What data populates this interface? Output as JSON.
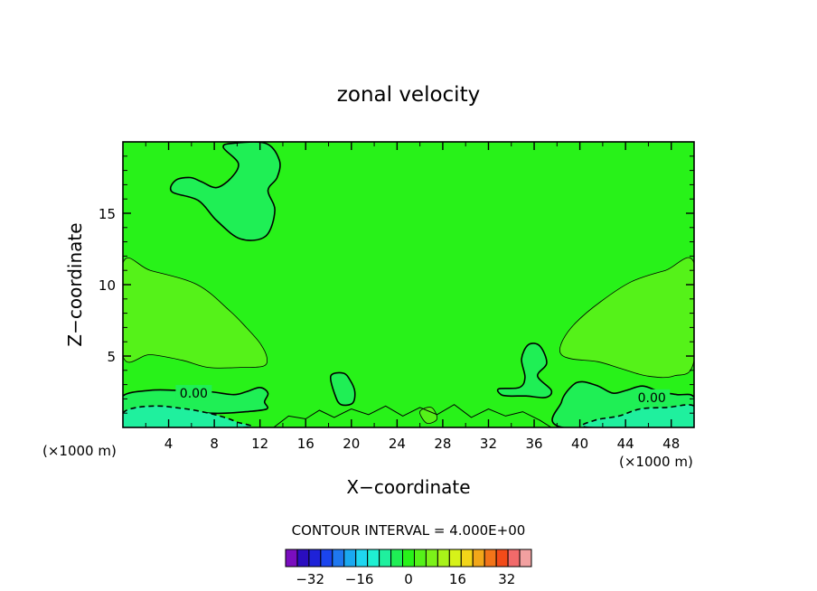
{
  "chart_data": {
    "type": "heatmap",
    "title": "zonal velocity",
    "xlabel": "X−coordinate",
    "ylabel": "Z−coordinate",
    "x_unit_label": "(×1000 m)",
    "x_unit_label_right": "(×1000 m)",
    "xlim": [
      0,
      50
    ],
    "ylim": [
      0,
      20
    ],
    "x_ticks": [
      {
        "value": 4,
        "label": "4"
      },
      {
        "value": 8,
        "label": "8"
      },
      {
        "value": 12,
        "label": "12"
      },
      {
        "value": 16,
        "label": "16"
      },
      {
        "value": 20,
        "label": "20"
      },
      {
        "value": 24,
        "label": "24"
      },
      {
        "value": 28,
        "label": "28"
      },
      {
        "value": 32,
        "label": "32"
      },
      {
        "value": 36,
        "label": "36"
      },
      {
        "value": 40,
        "label": "40"
      },
      {
        "value": 44,
        "label": "44"
      },
      {
        "value": 48,
        "label": "48"
      }
    ],
    "y_ticks": [
      {
        "value": 5,
        "label": "5"
      },
      {
        "value": 10,
        "label": "10"
      },
      {
        "value": 15,
        "label": "15"
      }
    ],
    "contour_labels": [
      {
        "x": 6.2,
        "y": 2.4,
        "text": "0.00"
      },
      {
        "x": 46.3,
        "y": 2.1,
        "text": "0.00"
      }
    ],
    "contour_interval_text": "CONTOUR INTERVAL = 4.000E+00",
    "colorbar": {
      "levels": [
        -40,
        -36,
        -32,
        -28,
        -24,
        -20,
        -16,
        -12,
        -8,
        -4,
        0,
        4,
        8,
        12,
        16,
        20,
        24,
        28,
        32,
        36,
        40
      ],
      "colors": [
        "#7a0dbf",
        "#2a0dbf",
        "#1e22d8",
        "#1b45ee",
        "#1f78f0",
        "#1aa9f0",
        "#1fd6f0",
        "#1ff0d2",
        "#1ff09e",
        "#1fef55",
        "#28f219",
        "#55f219",
        "#7cf219",
        "#a8f219",
        "#d6f219",
        "#f2d519",
        "#f2a719",
        "#f27419",
        "#f24b19",
        "#f26a6a",
        "#f2a0a0"
      ],
      "tick_labels": [
        {
          "level": -32,
          "label": "−32"
        },
        {
          "level": -16,
          "label": "−16"
        },
        {
          "level": 0,
          "label": "0"
        },
        {
          "level": 16,
          "label": "16"
        },
        {
          "level": 32,
          "label": "32"
        }
      ]
    },
    "field": {
      "background_color": "#28f219",
      "regions": [
        {
          "name": "upper-negative-blob",
          "color": "#1fef55",
          "points": [
            [
              8.2,
              16.8
            ],
            [
              9.5,
              17.5
            ],
            [
              10.1,
              18.5
            ],
            [
              8.8,
              19.6
            ],
            [
              9.6,
              19.9
            ],
            [
              12.5,
              19.9
            ],
            [
              13.7,
              18.7
            ],
            [
              13.5,
              17.5
            ],
            [
              12.7,
              16.6
            ],
            [
              13.3,
              15.2
            ],
            [
              12.5,
              13.4
            ],
            [
              10.3,
              13.2
            ],
            [
              8.2,
              14.5
            ],
            [
              6.6,
              15.9
            ],
            [
              4.3,
              16.5
            ],
            [
              4.6,
              17.3
            ],
            [
              5.9,
              17.5
            ],
            [
              6.9,
              17.2
            ]
          ]
        },
        {
          "name": "left-positive-lobe",
          "color": "#55f219",
          "points": [
            [
              0,
              11.5
            ],
            [
              2.4,
              11
            ],
            [
              6.5,
              10
            ],
            [
              9.3,
              8.2
            ],
            [
              10.8,
              7
            ],
            [
              12,
              5.9
            ],
            [
              12.6,
              4.9
            ],
            [
              12.3,
              4.3
            ],
            [
              10.3,
              4.2
            ],
            [
              7.5,
              4.2
            ],
            [
              5.2,
              4.7
            ],
            [
              2.4,
              5.1
            ],
            [
              0,
              5
            ]
          ]
        },
        {
          "name": "right-positive-lobe",
          "color": "#55f219",
          "points": [
            [
              50,
              11.5
            ],
            [
              47.5,
              11
            ],
            [
              44.5,
              10.2
            ],
            [
              41.8,
              8.8
            ],
            [
              39.6,
              7.3
            ],
            [
              38.5,
              6.1
            ],
            [
              38.3,
              5.2
            ],
            [
              39.3,
              4.8
            ],
            [
              41.6,
              4.6
            ],
            [
              43.7,
              4.1
            ],
            [
              45.9,
              3.6
            ],
            [
              48.2,
              3.6
            ],
            [
              50,
              4.7
            ]
          ]
        },
        {
          "name": "left-near-surface-negative",
          "color": "#1fef55",
          "points": [
            [
              0,
              2.2
            ],
            [
              2.4,
              2.6
            ],
            [
              4.7,
              2.6
            ],
            [
              7.6,
              2.5
            ],
            [
              9.7,
              2.3
            ],
            [
              10.8,
              2.5
            ],
            [
              12,
              2.8
            ],
            [
              12.7,
              2.4
            ],
            [
              12.4,
              1.8
            ],
            [
              12.6,
              1.3
            ],
            [
              10.8,
              1.1
            ],
            [
              9,
              1
            ],
            [
              7.6,
              1
            ],
            [
              5.6,
              1.1
            ],
            [
              3.6,
              1.1
            ],
            [
              1.6,
              0.9
            ],
            [
              0,
              0.8
            ]
          ]
        },
        {
          "name": "left-surface-strong-negative",
          "color": "#1ff09e",
          "points": [
            [
              0,
              1
            ],
            [
              1.2,
              1.4
            ],
            [
              3.1,
              1.5
            ],
            [
              4.5,
              1.4
            ],
            [
              6.3,
              1.2
            ],
            [
              8.5,
              0.8
            ],
            [
              9.9,
              0.4
            ],
            [
              10.6,
              0
            ],
            [
              0,
              0
            ]
          ]
        },
        {
          "name": "right-near-surface-negative",
          "color": "#1fef55",
          "points": [
            [
              38.5,
              0
            ],
            [
              38.4,
              1.8
            ],
            [
              39.3,
              2.9
            ],
            [
              40.2,
              3.2
            ],
            [
              41.6,
              2.9
            ],
            [
              42.9,
              2.4
            ],
            [
              44.1,
              2.6
            ],
            [
              45.5,
              2.9
            ],
            [
              47,
              2.5
            ],
            [
              48.5,
              2.3
            ],
            [
              50,
              2.1
            ],
            [
              50,
              0
            ]
          ]
        },
        {
          "name": "right-surface-strong-negative",
          "color": "#1ff09e",
          "points": [
            [
              40.8,
              0
            ],
            [
              41.3,
              0.5
            ],
            [
              43.4,
              0.8
            ],
            [
              45.3,
              1.3
            ],
            [
              47.6,
              1.4
            ],
            [
              50,
              1.5
            ],
            [
              50,
              0
            ]
          ]
        },
        {
          "name": "mid-negative-36",
          "color": "#1fef55",
          "points": [
            [
              32.9,
              2.7
            ],
            [
              34.7,
              2.8
            ],
            [
              35.2,
              3.5
            ],
            [
              34.9,
              4.8
            ],
            [
              35.5,
              5.8
            ],
            [
              36.5,
              5.7
            ],
            [
              37.1,
              4.5
            ],
            [
              36.3,
              3.6
            ],
            [
              37.5,
              2.6
            ],
            [
              37,
              2.1
            ],
            [
              35.3,
              2.2
            ],
            [
              33.8,
              2.2
            ],
            [
              33.1,
              2.3
            ]
          ]
        },
        {
          "name": "mid-negative-19",
          "color": "#1fef55",
          "points": [
            [
              18.2,
              3.6
            ],
            [
              19.3,
              3.8
            ],
            [
              19.9,
              3.3
            ],
            [
              20.3,
              2.5
            ],
            [
              20.1,
              1.7
            ],
            [
              19.1,
              1.6
            ],
            [
              18.6,
              2.2
            ]
          ]
        },
        {
          "name": "mid-positive-specks",
          "color": "#55f219",
          "points": [
            [
              26,
              1.1
            ],
            [
              27,
              1.4
            ],
            [
              27.5,
              0.6
            ],
            [
              26.6,
              0.3
            ]
          ]
        }
      ]
    }
  }
}
